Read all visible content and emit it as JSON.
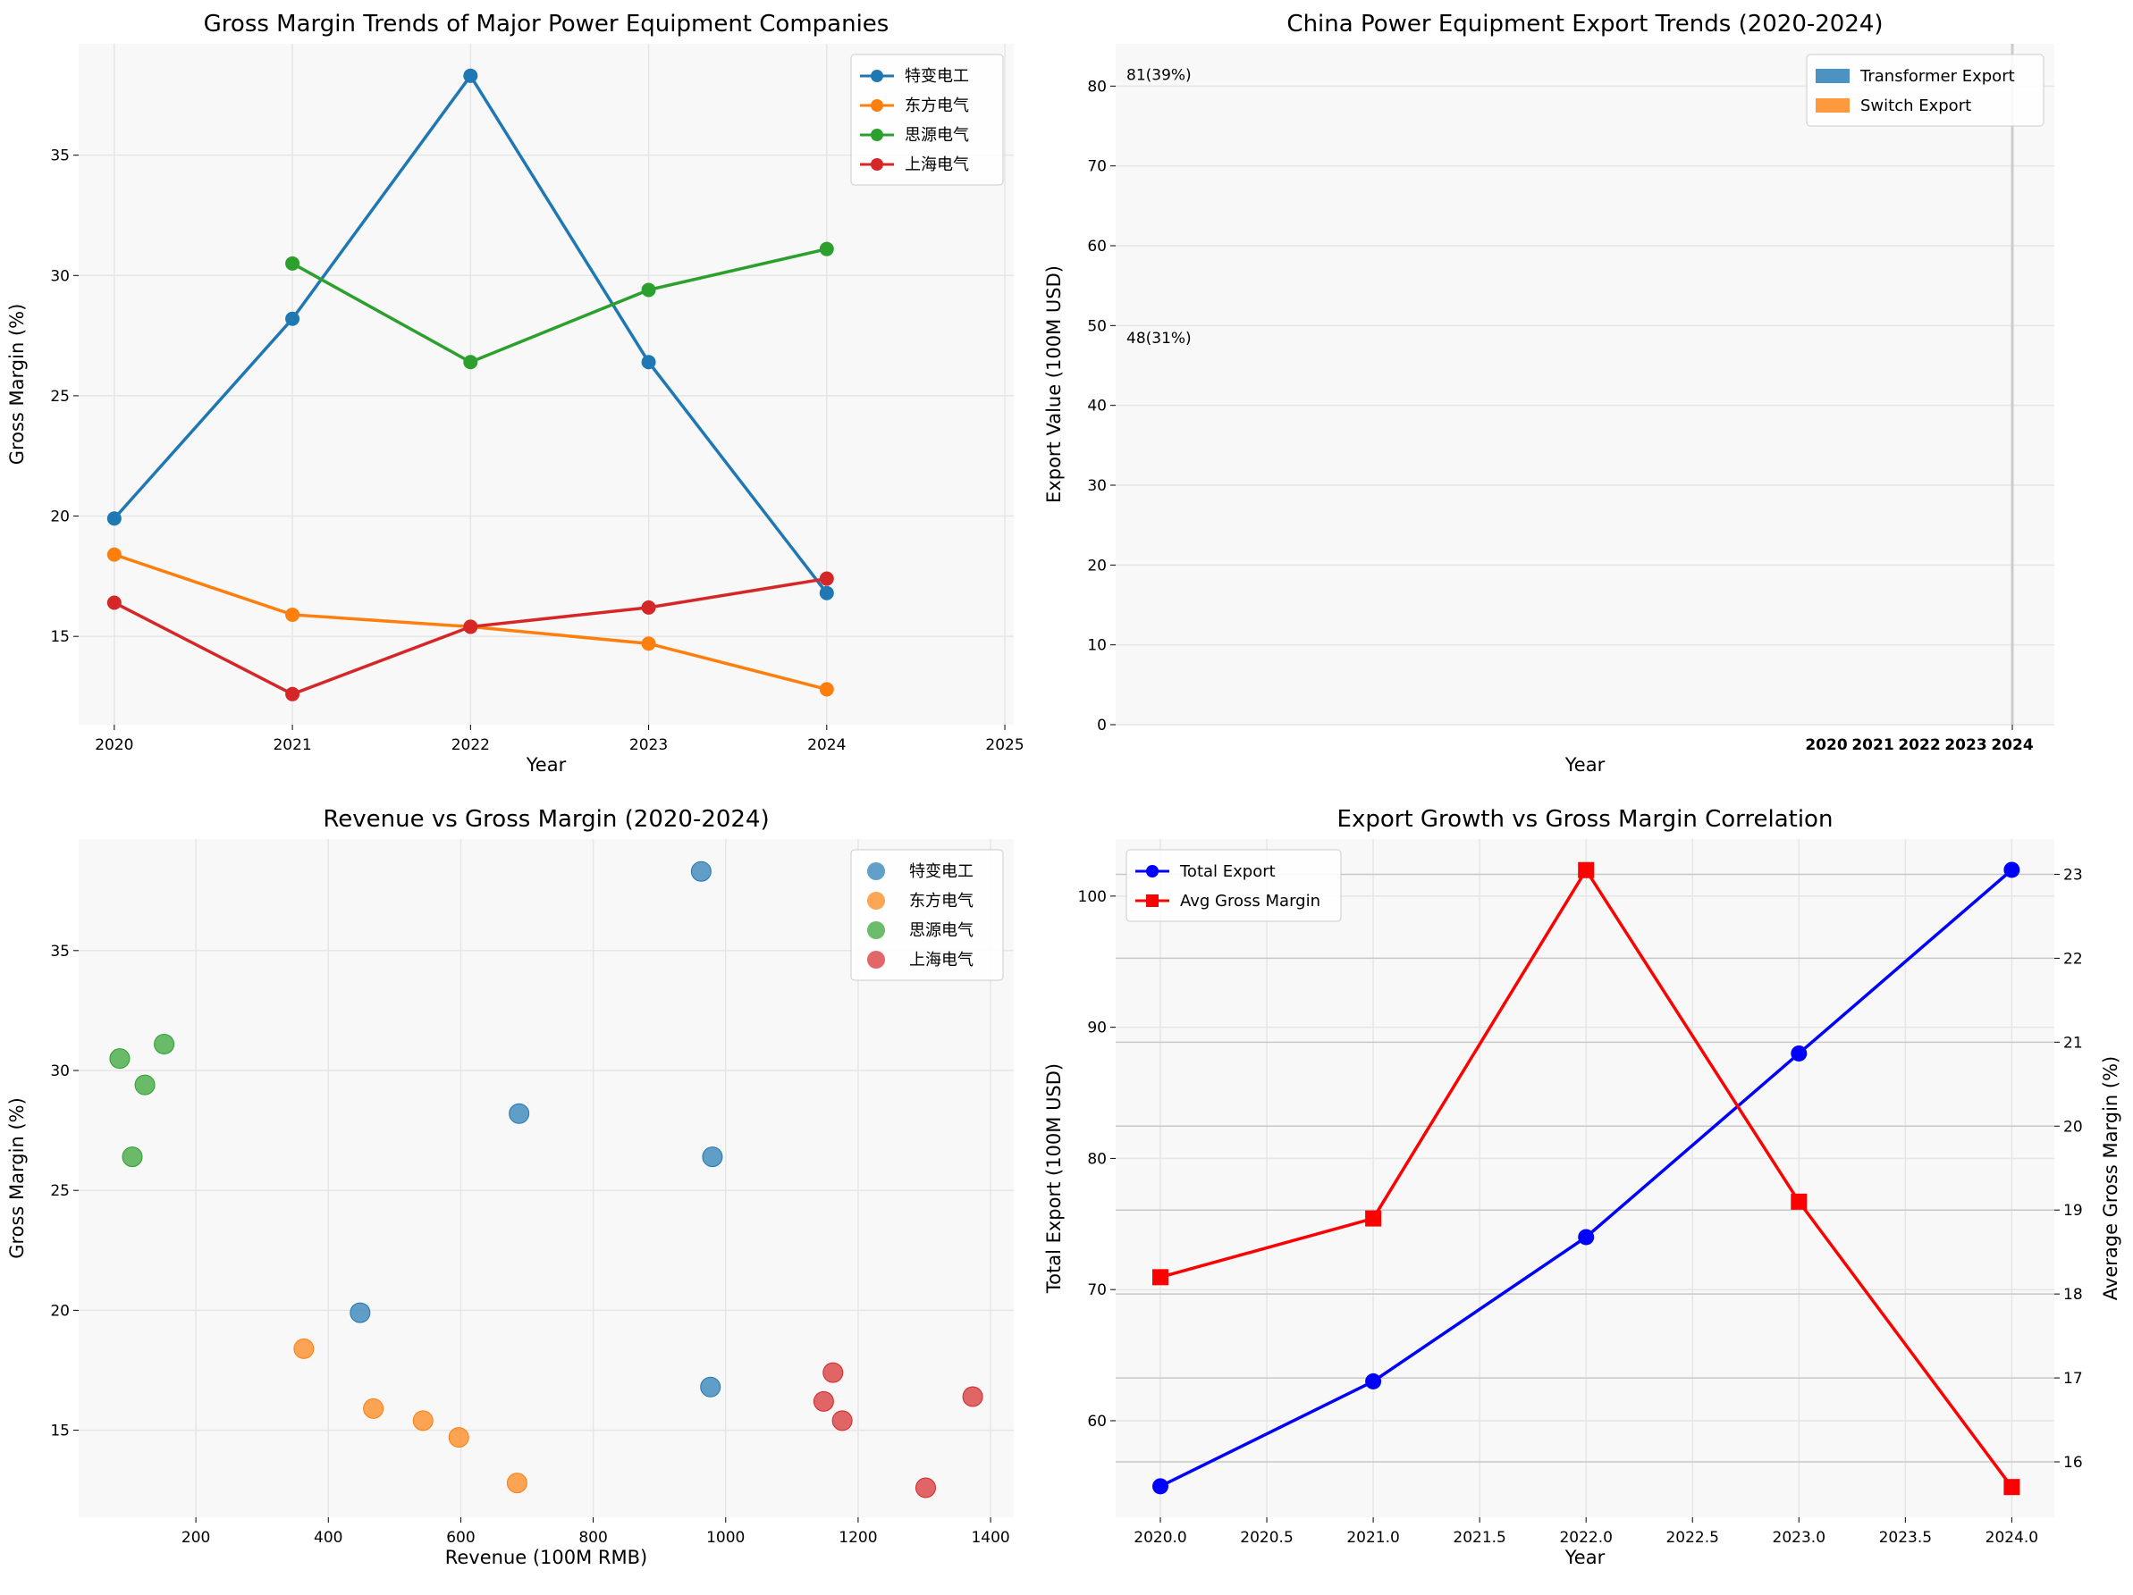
{
  "chart_data": [
    {
      "type": "line",
      "title": "Gross Margin Trends of Major Power Equipment Companies",
      "xlabel": "Year",
      "ylabel": "Gross Margin (%)",
      "x": [
        2020,
        2021,
        2022,
        2023,
        2024
      ],
      "xlim": [
        2019.8,
        2025.05
      ],
      "ylim": [
        11.33,
        39.63
      ],
      "xticks": [
        2020,
        2021,
        2022,
        2023,
        2024,
        2025
      ],
      "yticks": [
        15,
        20,
        25,
        30,
        35
      ],
      "grid": true,
      "legend": "top-right",
      "series": [
        {
          "name": "特变电工",
          "color": "#1f77b4",
          "values": [
            19.9,
            28.2,
            38.3,
            26.4,
            16.8
          ]
        },
        {
          "name": "东方电气",
          "color": "#ff7f0e",
          "values": [
            18.4,
            15.9,
            15.4,
            14.7,
            12.8
          ]
        },
        {
          "name": "思源电气",
          "color": "#2ca02c",
          "values": [
            null,
            30.5,
            26.4,
            29.4,
            31.1
          ]
        },
        {
          "name": "上海电气",
          "color": "#d62728",
          "values": [
            16.4,
            12.6,
            15.4,
            16.2,
            17.4
          ]
        }
      ]
    },
    {
      "type": "bar",
      "title": "China Power Equipment Export Trends (2020-2024)",
      "xlabel": "Year",
      "ylabel": "Export Value (100M USD)",
      "ylim": [
        0,
        85.3
      ],
      "yticks": [
        0,
        10,
        20,
        30,
        40,
        50,
        60,
        70,
        80
      ],
      "xticks": [
        "2020",
        "2021",
        "2022",
        "2023",
        "2024"
      ],
      "grid": true,
      "legend": "top-right",
      "series": [
        {
          "name": "Transformer Export",
          "color": "#1f77b4"
        },
        {
          "name": "Switch Export",
          "color": "#ff7f0e"
        }
      ],
      "annotations": [
        {
          "text": "81(39%)",
          "y": 81,
          "color": "#1f77b4"
        },
        {
          "text": "48(31%)",
          "y": 48,
          "color": "#ff7f0e"
        }
      ]
    },
    {
      "type": "scatter",
      "title": "Revenue vs Gross Margin (2020-2024)",
      "xlabel": "Revenue (100M RMB)",
      "ylabel": "Gross Margin (%)",
      "xlim": [
        23,
        1435
      ],
      "ylim": [
        11.37,
        39.65
      ],
      "xticks": [
        200,
        400,
        600,
        800,
        1000,
        1200,
        1400
      ],
      "yticks": [
        15,
        20,
        25,
        30,
        35
      ],
      "grid": true,
      "legend": "top-right",
      "series": [
        {
          "name": "特变电工",
          "color": "#1f77b4",
          "points": [
            [
              448,
              19.9
            ],
            [
              688,
              28.2
            ],
            [
              963,
              38.3
            ],
            [
              980,
              26.4
            ],
            [
              977,
              16.8
            ]
          ]
        },
        {
          "name": "东方电气",
          "color": "#ff7f0e",
          "points": [
            [
              363,
              18.4
            ],
            [
              468,
              15.9
            ],
            [
              543,
              15.4
            ],
            [
              597,
              14.7
            ],
            [
              685,
              12.8
            ]
          ]
        },
        {
          "name": "思源电气",
          "color": "#2ca02c",
          "points": [
            [
              85,
              30.5
            ],
            [
              104,
              26.4
            ],
            [
              123,
              29.4
            ],
            [
              152,
              31.1
            ]
          ]
        },
        {
          "name": "上海电气",
          "color": "#d62728",
          "points": [
            [
              1373,
              16.4
            ],
            [
              1302,
              12.6
            ],
            [
              1176,
              15.4
            ],
            [
              1148,
              16.2
            ],
            [
              1162,
              17.4
            ]
          ]
        }
      ]
    },
    {
      "type": "line",
      "title": "Export Growth vs Gross Margin Correlation",
      "xlabel": "Year",
      "ylabel": "Total Export (100M USD)",
      "y2label": "Average Gross Margin (%)",
      "x": [
        2020,
        2021,
        2022,
        2023,
        2024
      ],
      "xlim": [
        2019.79,
        2024.2
      ],
      "ylim": [
        52.64,
        104.35
      ],
      "y2lim": [
        15.34,
        23.42
      ],
      "xticks": [
        2020.0,
        2020.5,
        2021.0,
        2021.5,
        2022.0,
        2022.5,
        2023.0,
        2023.5,
        2024.0
      ],
      "yticks": [
        60,
        70,
        80,
        90,
        100
      ],
      "y2ticks": [
        16,
        17,
        18,
        19,
        20,
        21,
        22,
        23
      ],
      "grid": true,
      "legend": "top-left",
      "series": [
        {
          "name": "Total Export",
          "color": "#0000ff",
          "axis": "left",
          "marker": "circle",
          "values": [
            55,
            63,
            74,
            88,
            102
          ]
        },
        {
          "name": "Avg Gross Margin",
          "color": "#ff0000",
          "axis": "right",
          "marker": "square",
          "values": [
            18.2,
            18.9,
            23.05,
            19.1,
            15.7
          ]
        }
      ]
    }
  ]
}
